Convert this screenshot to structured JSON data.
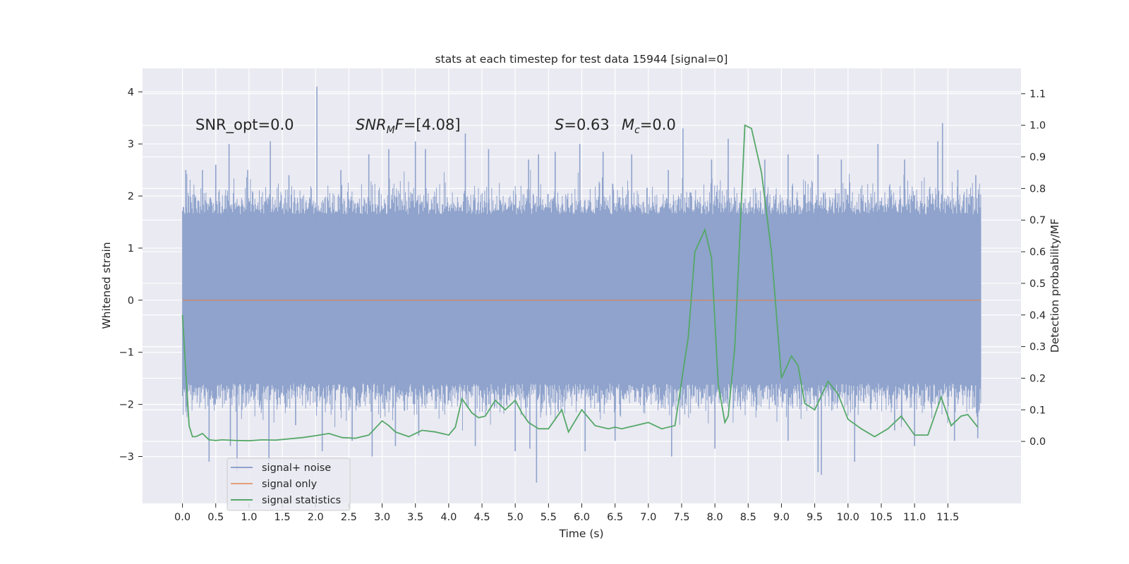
{
  "chart_data": {
    "type": "line",
    "title": "stats at each timestep for test data 15944 [signal=0]",
    "xlabel": "Time (s)",
    "ylabel": "Whitened strain",
    "y2label": "Detection probability/MF",
    "xlim": [
      -0.6,
      12.6
    ],
    "ylim": [
      -3.9,
      4.45
    ],
    "y2lim": [
      -0.196,
      1.18
    ],
    "x_ticks": [
      0.0,
      0.5,
      1.0,
      1.5,
      2.0,
      2.5,
      3.0,
      3.5,
      4.0,
      4.5,
      5.0,
      5.5,
      6.0,
      6.5,
      7.0,
      7.5,
      8.0,
      8.5,
      9.0,
      9.5,
      10.0,
      10.5,
      11.0,
      11.5
    ],
    "x_tick_labels": [
      "0.0",
      "0.5",
      "1.0",
      "1.5",
      "2.0",
      "2.5",
      "3.0",
      "3.5",
      "4.0",
      "4.5",
      "5.0",
      "5.5",
      "6.0",
      "6.5",
      "7.0",
      "7.5",
      "8.0",
      "8.5",
      "9.0",
      "9.5",
      "10.0",
      "10.5",
      "11.0",
      "11.5"
    ],
    "y_ticks": [
      -3,
      -2,
      -1,
      0,
      1,
      2,
      3,
      4
    ],
    "y_tick_labels": [
      "−3",
      "−2",
      "−1",
      "0",
      "1",
      "2",
      "3",
      "4"
    ],
    "y2_ticks": [
      0.0,
      0.1,
      0.2,
      0.3,
      0.4,
      0.5,
      0.6,
      0.7,
      0.8,
      0.9,
      1.0,
      1.1
    ],
    "y2_tick_labels": [
      "0.0",
      "0.1",
      "0.2",
      "0.3",
      "0.4",
      "0.5",
      "0.6",
      "0.7",
      "0.8",
      "0.9",
      "1.0",
      "1.1"
    ],
    "annotations": {
      "snr_opt": "SNR_opt=0.0",
      "snr_mf_symbol": "SNR",
      "snr_mf_sub": "M",
      "snr_mf_rest": "F",
      "snr_mf_value": "=[4.08]",
      "s_symbol": "S",
      "s_value": "=0.63",
      "mc_symbol": "M",
      "mc_sub": "c",
      "mc_value": "=0.0"
    },
    "legend": {
      "placement": "lower-left",
      "entries": [
        "signal+ noise",
        "signal only",
        "signal statistics"
      ]
    },
    "colors": {
      "noise": "#8fa3cc",
      "signal": "#dd8452",
      "stats": "#55a868",
      "grid": "#ffffff",
      "background": "#eaeaf2"
    },
    "series": [
      {
        "name": "signal+ noise",
        "description": "whitened strain, noise band ~ [-1.9, 2.1] with spikes",
        "t_range": [
          0.0,
          12.0
        ],
        "band": [
          -1.9,
          2.1
        ],
        "upper_peaks": [
          [
            0.05,
            2.5
          ],
          [
            0.3,
            2.5
          ],
          [
            0.5,
            2.6
          ],
          [
            0.7,
            3.0
          ],
          [
            0.98,
            2.5
          ],
          [
            1.32,
            3.05
          ],
          [
            1.6,
            2.4
          ],
          [
            2.02,
            4.1
          ],
          [
            2.38,
            2.5
          ],
          [
            2.8,
            2.8
          ],
          [
            3.1,
            2.9
          ],
          [
            3.5,
            3.05
          ],
          [
            3.65,
            2.9
          ],
          [
            4.25,
            3.2
          ],
          [
            4.6,
            2.9
          ],
          [
            5.2,
            2.7
          ],
          [
            5.35,
            2.8
          ],
          [
            5.6,
            2.85
          ],
          [
            5.97,
            3.0
          ],
          [
            6.32,
            2.85
          ],
          [
            6.75,
            2.8
          ],
          [
            7.3,
            2.5
          ],
          [
            7.52,
            3.3
          ],
          [
            7.95,
            2.7
          ],
          [
            8.2,
            3.1
          ],
          [
            8.75,
            2.7
          ],
          [
            9.1,
            2.8
          ],
          [
            9.55,
            2.8
          ],
          [
            9.9,
            2.7
          ],
          [
            10.45,
            3.0
          ],
          [
            10.85,
            2.7
          ],
          [
            11.35,
            3.05
          ],
          [
            11.42,
            3.4
          ],
          [
            11.65,
            2.5
          ],
          [
            11.92,
            2.4
          ]
        ],
        "lower_peaks": [
          [
            0.4,
            -3.1
          ],
          [
            0.72,
            -2.8
          ],
          [
            0.82,
            -3.3
          ],
          [
            1.3,
            -3.1
          ],
          [
            1.7,
            -2.4
          ],
          [
            2.1,
            -2.9
          ],
          [
            2.55,
            -2.7
          ],
          [
            2.85,
            -3.0
          ],
          [
            3.2,
            -2.8
          ],
          [
            3.55,
            -2.6
          ],
          [
            4.4,
            -2.8
          ],
          [
            5.0,
            -2.9
          ],
          [
            5.22,
            -2.85
          ],
          [
            5.32,
            -3.5
          ],
          [
            6.05,
            -2.9
          ],
          [
            6.5,
            -2.7
          ],
          [
            7.35,
            -3.0
          ],
          [
            8.0,
            -2.85
          ],
          [
            9.1,
            -2.7
          ],
          [
            9.55,
            -3.3
          ],
          [
            9.6,
            -3.35
          ],
          [
            10.1,
            -3.1
          ],
          [
            10.7,
            -2.5
          ],
          [
            11.0,
            -2.8
          ],
          [
            11.6,
            -2.7
          ],
          [
            11.95,
            -2.65
          ]
        ]
      },
      {
        "name": "signal only",
        "x": [
          0.0,
          12.0
        ],
        "y": [
          0.0,
          0.0
        ]
      },
      {
        "name": "signal statistics",
        "axis": "y2",
        "x": [
          0.0,
          0.05,
          0.1,
          0.15,
          0.2,
          0.3,
          0.4,
          0.5,
          0.6,
          0.8,
          1.0,
          1.2,
          1.4,
          1.6,
          1.8,
          2.0,
          2.2,
          2.4,
          2.6,
          2.8,
          3.0,
          3.1,
          3.2,
          3.4,
          3.6,
          3.8,
          4.0,
          4.1,
          4.2,
          4.35,
          4.45,
          4.55,
          4.7,
          4.85,
          5.0,
          5.1,
          5.2,
          5.35,
          5.5,
          5.7,
          5.8,
          6.0,
          6.2,
          6.4,
          6.5,
          6.6,
          6.8,
          7.0,
          7.2,
          7.4,
          7.6,
          7.7,
          7.85,
          7.95,
          8.05,
          8.15,
          8.2,
          8.3,
          8.45,
          8.55,
          8.7,
          8.85,
          9.0,
          9.15,
          9.25,
          9.35,
          9.5,
          9.7,
          9.85,
          10.0,
          10.2,
          10.4,
          10.6,
          10.8,
          11.0,
          11.2,
          11.4,
          11.55,
          11.7,
          11.8,
          11.95
        ],
        "y": [
          0.4,
          0.22,
          0.05,
          0.015,
          0.015,
          0.025,
          0.005,
          0.003,
          0.005,
          0.003,
          0.002,
          0.005,
          0.004,
          0.008,
          0.012,
          0.018,
          0.025,
          0.012,
          0.01,
          0.02,
          0.065,
          0.05,
          0.03,
          0.015,
          0.035,
          0.03,
          0.02,
          0.045,
          0.135,
          0.09,
          0.075,
          0.08,
          0.13,
          0.1,
          0.13,
          0.09,
          0.06,
          0.04,
          0.04,
          0.1,
          0.03,
          0.1,
          0.05,
          0.04,
          0.045,
          0.04,
          0.05,
          0.06,
          0.04,
          0.05,
          0.33,
          0.6,
          0.67,
          0.58,
          0.18,
          0.06,
          0.08,
          0.3,
          1.0,
          0.99,
          0.85,
          0.6,
          0.2,
          0.27,
          0.24,
          0.12,
          0.1,
          0.19,
          0.15,
          0.07,
          0.04,
          0.015,
          0.04,
          0.08,
          0.02,
          0.02,
          0.14,
          0.05,
          0.08,
          0.085,
          0.045
        ]
      }
    ]
  }
}
